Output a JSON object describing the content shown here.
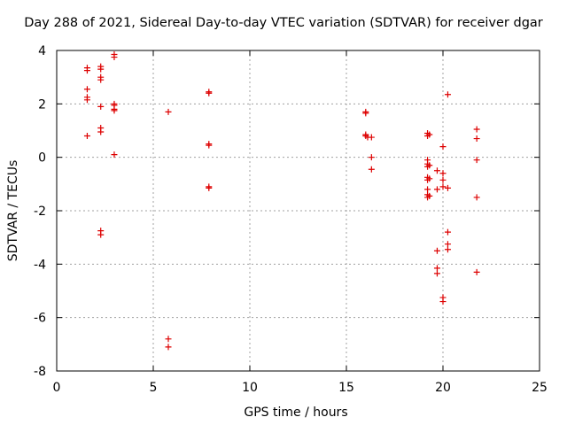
{
  "chart_data": {
    "type": "scatter",
    "title": "Day 288 of 2021, Sidereal Day-to-day VTEC variation (SDTVAR) for receiver dgar",
    "xlabel": "GPS time / hours",
    "ylabel": "SDTVAR / TECUs",
    "xlim": [
      0,
      25
    ],
    "ylim": [
      -8,
      4
    ],
    "xticks": [
      0,
      5,
      10,
      15,
      20,
      25
    ],
    "yticks": [
      -8,
      -6,
      -4,
      -2,
      0,
      2,
      4
    ],
    "grid": true,
    "marker": "+",
    "color": "#dd0000",
    "points": [
      [
        1.58,
        3.35
      ],
      [
        1.58,
        3.25
      ],
      [
        1.58,
        2.55
      ],
      [
        1.58,
        2.25
      ],
      [
        1.58,
        2.15
      ],
      [
        1.58,
        0.8
      ],
      [
        2.28,
        3.4
      ],
      [
        2.28,
        3.3
      ],
      [
        2.28,
        3.0
      ],
      [
        2.28,
        2.9
      ],
      [
        2.28,
        1.9
      ],
      [
        2.28,
        1.1
      ],
      [
        2.28,
        0.95
      ],
      [
        2.28,
        -2.75
      ],
      [
        2.28,
        -2.9
      ],
      [
        2.98,
        3.85
      ],
      [
        2.98,
        3.75
      ],
      [
        2.98,
        2.0
      ],
      [
        2.98,
        1.95
      ],
      [
        2.98,
        1.8
      ],
      [
        2.98,
        1.75
      ],
      [
        2.98,
        0.1
      ],
      [
        5.78,
        1.7
      ],
      [
        5.78,
        -6.8
      ],
      [
        5.78,
        -7.1
      ],
      [
        7.88,
        2.45
      ],
      [
        7.88,
        2.4
      ],
      [
        7.88,
        0.5
      ],
      [
        7.88,
        0.45
      ],
      [
        7.88,
        -1.1
      ],
      [
        7.88,
        -1.15
      ],
      [
        16.0,
        1.7
      ],
      [
        16.0,
        1.65
      ],
      [
        16.0,
        0.85
      ],
      [
        16.0,
        0.8
      ],
      [
        16.1,
        0.75
      ],
      [
        16.3,
        0.75
      ],
      [
        16.3,
        0.0
      ],
      [
        16.3,
        -0.45
      ],
      [
        19.2,
        0.9
      ],
      [
        19.2,
        0.8
      ],
      [
        19.2,
        -0.1
      ],
      [
        19.2,
        -0.25
      ],
      [
        19.2,
        -0.35
      ],
      [
        19.2,
        -0.75
      ],
      [
        19.2,
        -0.85
      ],
      [
        19.2,
        -1.2
      ],
      [
        19.2,
        -1.4
      ],
      [
        19.2,
        -1.5
      ],
      [
        19.3,
        0.85
      ],
      [
        19.3,
        -0.3
      ],
      [
        19.3,
        -0.8
      ],
      [
        19.3,
        -1.45
      ],
      [
        19.7,
        -0.5
      ],
      [
        19.7,
        -1.2
      ],
      [
        19.7,
        -3.5
      ],
      [
        19.7,
        -4.15
      ],
      [
        19.7,
        -4.35
      ],
      [
        20.0,
        0.4
      ],
      [
        20.0,
        -0.6
      ],
      [
        20.0,
        -0.85
      ],
      [
        20.0,
        -1.1
      ],
      [
        20.0,
        -5.25
      ],
      [
        20.0,
        -5.4
      ],
      [
        20.25,
        2.35
      ],
      [
        20.25,
        -1.15
      ],
      [
        20.25,
        -2.8
      ],
      [
        20.25,
        -3.25
      ],
      [
        20.25,
        -3.45
      ],
      [
        21.75,
        1.05
      ],
      [
        21.75,
        0.7
      ],
      [
        21.75,
        -0.1
      ],
      [
        21.75,
        -1.5
      ],
      [
        21.75,
        -4.3
      ]
    ]
  }
}
